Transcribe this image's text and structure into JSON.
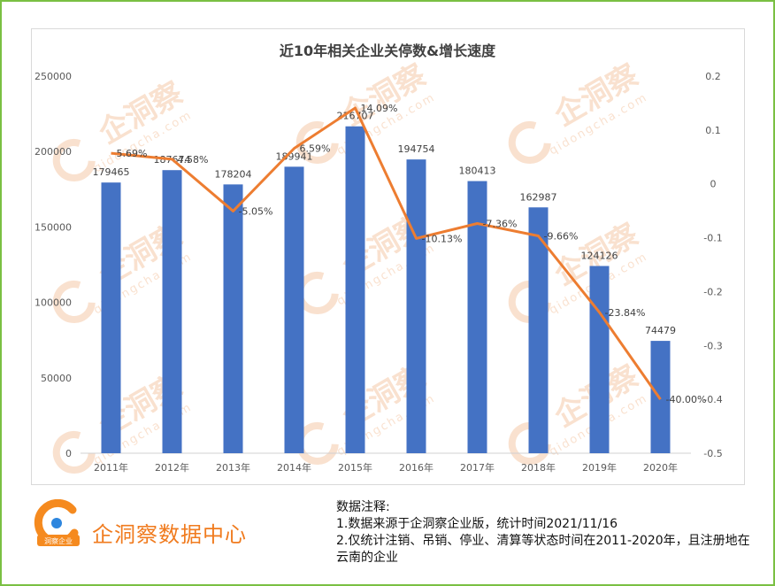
{
  "chart_data": {
    "type": "bar",
    "title": "近10年相关企业关停数&增长速度",
    "categories": [
      "2011年",
      "2012年",
      "2013年",
      "2014年",
      "2015年",
      "2016年",
      "2017年",
      "2018年",
      "2019年",
      "2020年"
    ],
    "series": [
      {
        "type": "bar",
        "axis": "left",
        "color": "#4472c4",
        "values": [
          179465,
          187674,
          178204,
          189941,
          216707,
          194754,
          180413,
          162987,
          124126,
          74479
        ],
        "labels": [
          "179465",
          "187674",
          "178204",
          "189941",
          "216707",
          "194754",
          "180413",
          "162987",
          "124126",
          "74479"
        ]
      },
      {
        "type": "line",
        "axis": "right",
        "color": "#ed7d31",
        "values": [
          0.0569,
          0.0458,
          -0.0505,
          0.0659,
          0.1409,
          -0.1013,
          -0.0736,
          -0.0966,
          -0.2384,
          -0.4
        ],
        "labels": [
          "5.69%",
          "4.58%",
          "-5.05%",
          "6.59%",
          "14.09%",
          "-10.13%",
          "-7.36%",
          "-9.66%",
          "-23.84%",
          "-40.00%"
        ]
      }
    ],
    "y_left": {
      "min": 0,
      "max": 250000,
      "ticks": [
        "0",
        "50000",
        "100000",
        "150000",
        "200000",
        "250000"
      ]
    },
    "y_right": {
      "min": -0.5,
      "max": 0.2,
      "ticks": [
        "-0.5",
        "-0.4",
        "-0.3",
        "-0.2",
        "-0.1",
        "0",
        "0.1",
        "0.2"
      ]
    },
    "grid": false,
    "legend": "none"
  },
  "watermark": {
    "brand": "企洞察",
    "domain": "qidongcha.com",
    "color": "#f5c9a8"
  },
  "footer": {
    "brand_name": "企洞察数据中心",
    "logo_text": "洞察企业",
    "notes_title": "数据注释:",
    "notes": [
      "1.数据来源于企洞察企业版，统计时间2021/11/16",
      "2.仅统计注销、吊销、停业、清算等状态时间在2011-2020年，且注册地在云南的企业"
    ]
  }
}
